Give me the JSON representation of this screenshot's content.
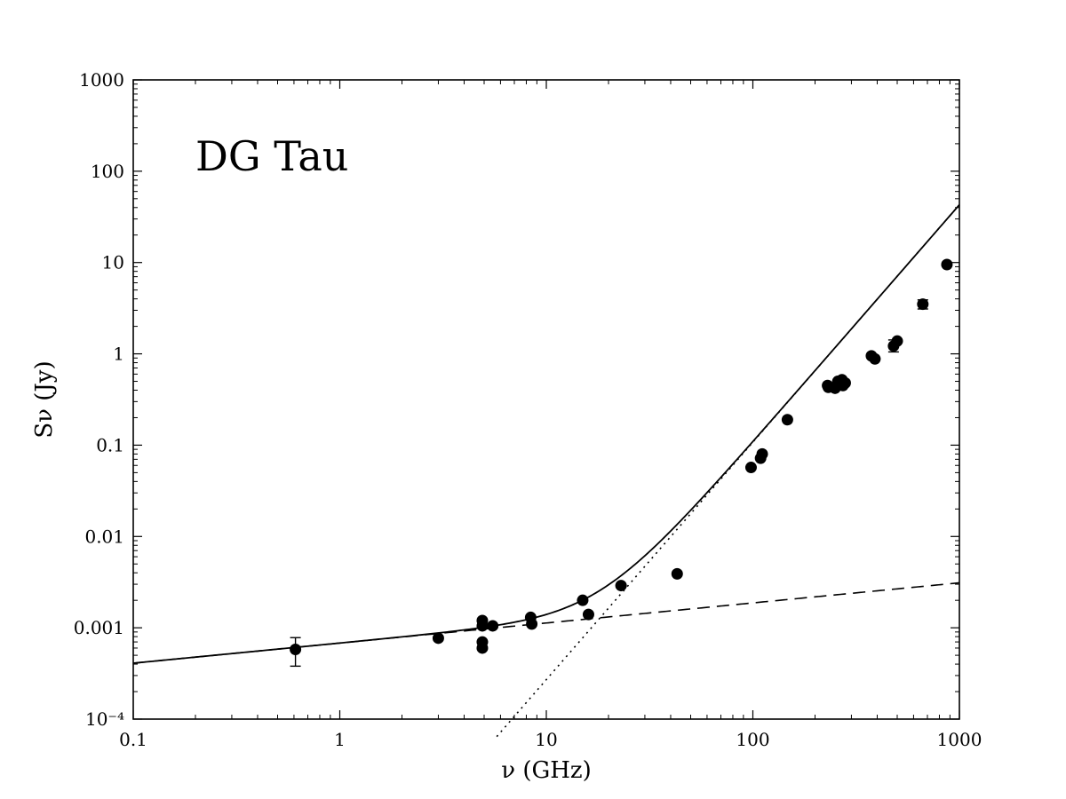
{
  "chart_data": {
    "type": "scatter",
    "annotation": "DG Tau",
    "xlabel": "ν (GHz)",
    "ylabel": "Sν (Jy)",
    "xscale": "log",
    "yscale": "log",
    "xlim": [
      0.1,
      1000
    ],
    "ylim": [
      0.0001,
      1000
    ],
    "grid": false,
    "x_tick_labels": [
      "0.1",
      "1",
      "10",
      "100",
      "1000"
    ],
    "y_tick_labels": [
      "10⁻⁴",
      "0.001",
      "0.01",
      "0.1",
      "1",
      "10",
      "100",
      "1000"
    ],
    "points": [
      {
        "x": 0.61,
        "y": 0.00058,
        "err_lo": 0.00038,
        "err_hi": 0.00078
      },
      {
        "x": 3.0,
        "y": 0.00077
      },
      {
        "x": 4.9,
        "y": 0.0012
      },
      {
        "x": 4.9,
        "y": 0.00105
      },
      {
        "x": 4.9,
        "y": 0.0007
      },
      {
        "x": 4.9,
        "y": 0.0006
      },
      {
        "x": 5.5,
        "y": 0.00105
      },
      {
        "x": 8.4,
        "y": 0.0013
      },
      {
        "x": 8.5,
        "y": 0.0011
      },
      {
        "x": 15.0,
        "y": 0.002
      },
      {
        "x": 16.0,
        "y": 0.0014
      },
      {
        "x": 23.0,
        "y": 0.0029
      },
      {
        "x": 43.0,
        "y": 0.0039
      },
      {
        "x": 98.0,
        "y": 0.057
      },
      {
        "x": 109.0,
        "y": 0.072
      },
      {
        "x": 111.0,
        "y": 0.08
      },
      {
        "x": 147.0,
        "y": 0.19
      },
      {
        "x": 230.0,
        "y": 0.45
      },
      {
        "x": 232.0,
        "y": 0.43
      },
      {
        "x": 250.0,
        "y": 0.42
      },
      {
        "x": 258.0,
        "y": 0.5
      },
      {
        "x": 270.0,
        "y": 0.52
      },
      {
        "x": 273.0,
        "y": 0.45
      },
      {
        "x": 280.0,
        "y": 0.48
      },
      {
        "x": 375.0,
        "y": 0.95
      },
      {
        "x": 390.0,
        "y": 0.88
      },
      {
        "x": 480.0,
        "y": 1.22,
        "err_lo": 1.05,
        "err_hi": 1.42
      },
      {
        "x": 500.0,
        "y": 1.38
      },
      {
        "x": 665.0,
        "y": 3.5,
        "err_lo": 3.1,
        "err_hi": 3.9
      },
      {
        "x": 870.0,
        "y": 9.5
      }
    ],
    "models": [
      {
        "style": "dashed",
        "kind": "power-law",
        "amp": 0.00068,
        "index": 0.22
      },
      {
        "style": "dotted",
        "kind": "power-law",
        "amp": 6.8e-07,
        "index": 2.6
      },
      {
        "style": "solid",
        "kind": "sum"
      }
    ]
  }
}
